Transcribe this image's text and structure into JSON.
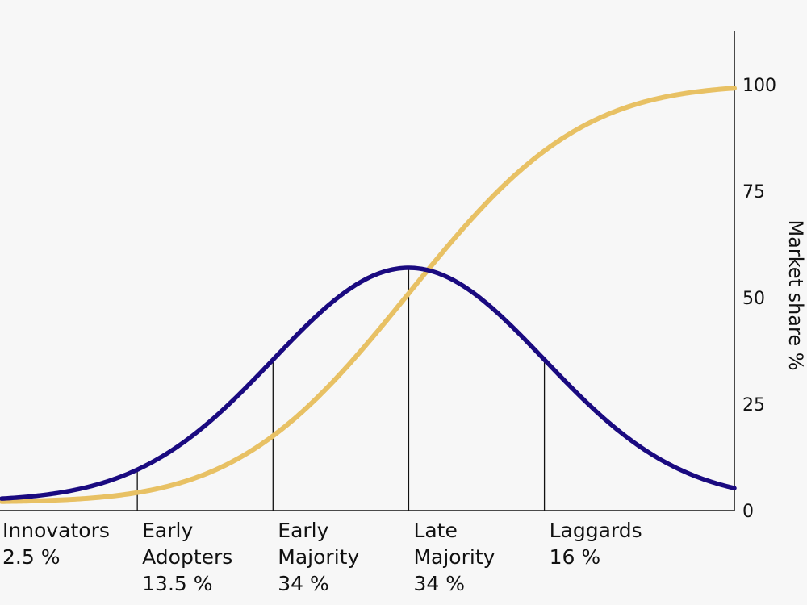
{
  "chart_data": {
    "type": "line",
    "title": "",
    "xlabel": "",
    "ylabel": "Market share %",
    "ylim": [
      0,
      100
    ],
    "y_ticks": [
      "0",
      "25",
      "50",
      "75",
      "100"
    ],
    "y_axis_position": "right",
    "grid": false,
    "legend": "none",
    "categories": [
      {
        "lines": [
          "Innovators",
          "2.5 %"
        ]
      },
      {
        "lines": [
          "Early",
          "Adopters",
          "13.5 %"
        ]
      },
      {
        "lines": [
          "Early",
          "Majority",
          "34 %"
        ]
      },
      {
        "lines": [
          "Late",
          "Majority",
          "34 %"
        ]
      },
      {
        "lines": [
          "Laggards",
          "16 %"
        ]
      }
    ],
    "boundaries_sd": [
      -2,
      -1,
      0,
      1
    ],
    "x_range_sd": [
      -3,
      2.4
    ],
    "series": [
      {
        "shape": "normal-curve",
        "color": "#1a0a80",
        "peak_y": 57,
        "base_y": 2.2
      },
      {
        "shape": "cumulative-curve",
        "color": "#e8c164",
        "max_y": 100,
        "start_y": 2
      }
    ]
  }
}
